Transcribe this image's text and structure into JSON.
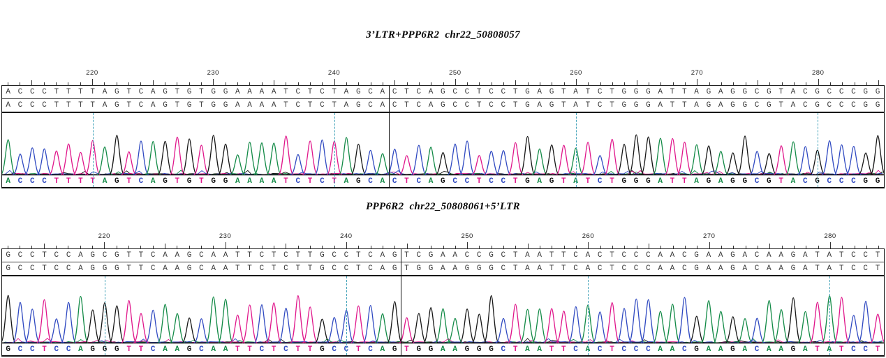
{
  "colors": {
    "A": "#128a46",
    "C": "#2f49c1",
    "G": "#161616",
    "T": "#e0168b",
    "grid": "#45a4ba",
    "row_letter": "#3a3a3a",
    "ruler": "#222222",
    "frame": "#111111"
  },
  "chart_data": [
    {
      "type": "line",
      "subtype": "sanger-chromatogram",
      "title": "3’LTR+PPP6R2  chr22_50808057",
      "x_start": 213,
      "x_ticks": [
        220,
        230,
        240,
        250,
        260,
        270,
        280
      ],
      "gridlines_at": [
        220,
        240,
        260,
        280
      ],
      "reference_row": "ACCCTTTTAGTCAGTGTGGAAAATCTCTAGCACTCAGCCTCCTGAGTATCTGGGATTAGAGGCGTACGCCCGG",
      "read_row": "ACCCTTTTAGTCAGTGTGGAAAATCTCTAGCACTCAGCCTCCTGAGTATCTGGGATTAGAGGCGTACGCCCGG",
      "base_calls": "ACCCTTTTAGTCAGTGTGGAAAATCTCTAGCACTCAGCCTCCTGAGTATCTGGGATTAGAGGCGTACGCCCGG",
      "junction_after_base": 32,
      "trace_height": 91,
      "amplitude": 0.55,
      "seed": 13
    },
    {
      "type": "line",
      "subtype": "sanger-chromatogram",
      "title": "PPP6R2  chr22_50808061+5’LTR",
      "x_start": 212,
      "x_ticks": [
        220,
        230,
        240,
        250,
        260,
        270,
        280
      ],
      "gridlines_at": [
        220,
        240,
        260,
        280
      ],
      "reference_row": "GCCTCCAGCGTTCAAGCAATTCTCTTGCCTCAGTCGAACCGCTAATTCACTCCCAACGAAGACAAGATATCCT",
      "read_row": "GCCTCCAGGGTTCAAGCAATTCTCTTGCCTCAGTGGAAGGGCTAATTCACTCCCAACGAAGACAAGATATCCT",
      "base_calls": "GCCTCCAGGGTTCAAGCAATTCTCTTGCCTCAGTGGAAGGGCTAATTCACTCCCAACGAAGACAAGATATCCT",
      "junction_after_base": 33,
      "trace_height": 98,
      "amplitude": 0.62,
      "seed": 29
    }
  ]
}
